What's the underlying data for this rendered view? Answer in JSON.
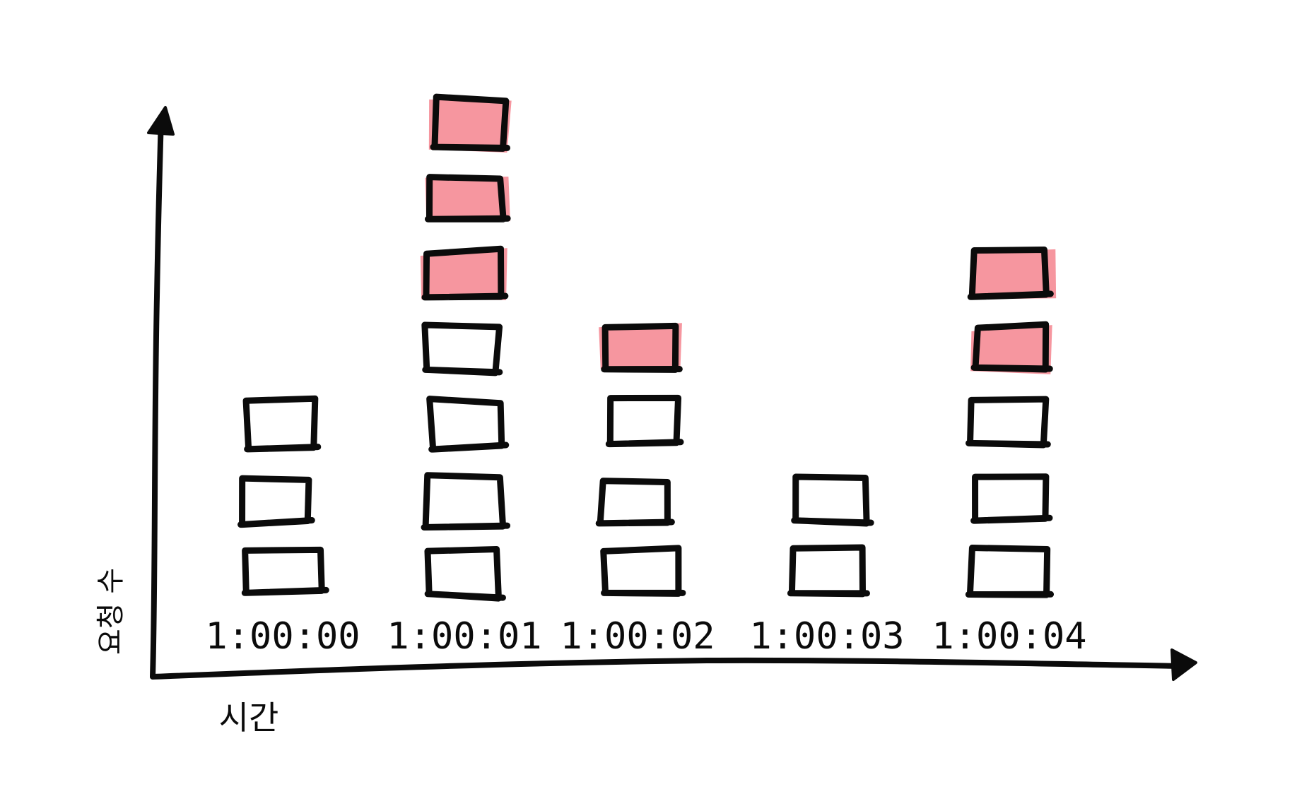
{
  "chart_data": {
    "type": "bar",
    "categories": [
      "1:00:00",
      "1:00:01",
      "1:00:02",
      "1:00:03",
      "1:00:04"
    ],
    "series": [
      {
        "values": [
          3,
          4,
          3,
          2,
          3
        ]
      },
      {
        "values": [
          0,
          3,
          1,
          0,
          2
        ]
      }
    ],
    "xlabel": "시간",
    "ylabel": "요청 수",
    "colors": {
      "outline": "#0b0b0b",
      "highlight": "#f4848e",
      "plain": "#ffffff",
      "background": "#ffffff"
    },
    "grid": false,
    "legend": "none"
  }
}
